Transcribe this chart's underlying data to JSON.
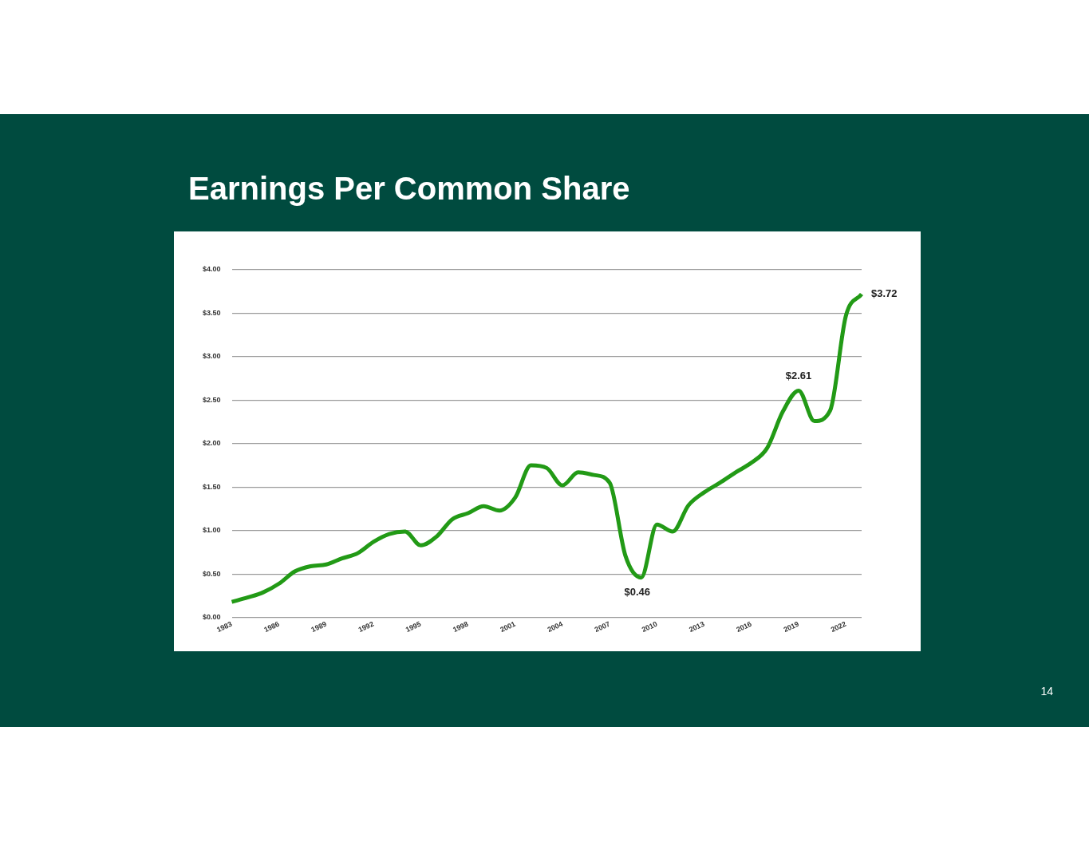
{
  "chart_data": {
    "type": "line",
    "title": "Earnings Per Common Share",
    "categories": [
      "1983",
      null,
      null,
      "1986",
      null,
      null,
      "1989",
      null,
      null,
      "1992",
      null,
      null,
      "1995",
      null,
      null,
      "1998",
      null,
      null,
      "2001",
      null,
      null,
      "2004",
      null,
      null,
      "2007",
      null,
      null,
      "2010",
      null,
      null,
      "2013",
      null,
      null,
      "2016",
      null,
      null,
      "2019",
      null,
      null,
      "2022",
      null
    ],
    "series": [
      {
        "color": "#229a16",
        "values": [
          0.18,
          0.23,
          0.29,
          0.39,
          0.53,
          0.59,
          0.61,
          0.68,
          0.74,
          0.87,
          0.96,
          0.99,
          0.83,
          0.93,
          1.13,
          1.2,
          1.28,
          1.23,
          1.38,
          1.75,
          1.72,
          1.52,
          1.67,
          1.64,
          1.55,
          0.71,
          0.46,
          1.07,
          0.99,
          1.29,
          1.44,
          1.55,
          1.67,
          1.78,
          1.95,
          2.37,
          2.61,
          2.26,
          2.38,
          3.47,
          3.72
        ],
        "value_labels": [
          null,
          null,
          null,
          null,
          null,
          null,
          null,
          null,
          null,
          null,
          null,
          null,
          null,
          null,
          null,
          null,
          null,
          null,
          null,
          null,
          null,
          null,
          null,
          null,
          null,
          null,
          "$0.46",
          null,
          null,
          null,
          null,
          null,
          null,
          null,
          null,
          null,
          "$2.61",
          null,
          null,
          null,
          "$3.72"
        ]
      }
    ],
    "ylim": [
      0,
      4
    ],
    "yticks": [
      {
        "value": 0,
        "label": "$0.00"
      },
      {
        "value": 0.5,
        "label": "$0.50"
      },
      {
        "value": 1,
        "label": "$1.00"
      },
      {
        "value": 1.5,
        "label": "$1.50"
      },
      {
        "value": 2,
        "label": "$2.00"
      },
      {
        "value": 2.5,
        "label": "$2.50"
      },
      {
        "value": 3,
        "label": "$3.00"
      },
      {
        "value": 3.5,
        "label": "$3.50"
      },
      {
        "value": 4,
        "label": "$4.00"
      }
    ],
    "grid": "y",
    "legend": false,
    "marker": "none",
    "line_style": "solid",
    "annotations": [
      "14"
    ]
  }
}
